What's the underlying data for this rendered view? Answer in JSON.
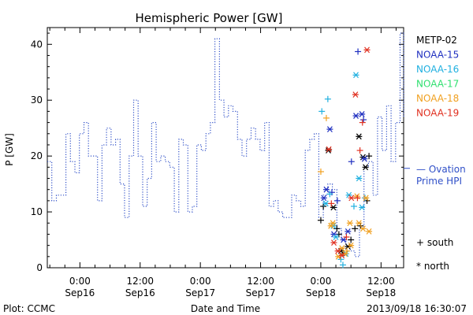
{
  "chart_data": {
    "type": "line",
    "title": "Hemispheric Power [GW]",
    "ylabel": "P [GW]",
    "xlabel": "Date and Time",
    "ylim": [
      0,
      43
    ],
    "yticks": [
      0,
      10,
      20,
      30,
      40
    ],
    "x_ticks": [
      {
        "t": 24,
        "time": "0:00",
        "date": "Sep16"
      },
      {
        "t": 36,
        "time": "12:00",
        "date": "Sep16"
      },
      {
        "t": 48,
        "time": "0:00",
        "date": "Sep17"
      },
      {
        "t": 60,
        "time": "12:00",
        "date": "Sep17"
      },
      {
        "t": 72,
        "time": "0:00",
        "date": "Sep18"
      },
      {
        "t": 84,
        "time": "12:00",
        "date": "Sep18"
      }
    ],
    "xlim": [
      17.5,
      88.5
    ],
    "ovation": {
      "name": "Ovation Prime HPI",
      "label_line1": "— Ovation",
      "label_line2": "Prime HPI",
      "color": "#3050c8",
      "steps": [
        [
          17.5,
          19
        ],
        [
          18.4,
          12
        ],
        [
          19.3,
          13
        ],
        [
          21.2,
          24
        ],
        [
          22.1,
          19
        ],
        [
          23.0,
          17
        ],
        [
          23.9,
          24
        ],
        [
          24.8,
          26
        ],
        [
          25.7,
          20
        ],
        [
          27.5,
          12
        ],
        [
          28.4,
          22
        ],
        [
          29.3,
          25
        ],
        [
          30.2,
          22
        ],
        [
          31.1,
          23
        ],
        [
          32.0,
          15
        ],
        [
          32.9,
          9
        ],
        [
          33.8,
          20
        ],
        [
          34.7,
          30
        ],
        [
          35.6,
          20
        ],
        [
          36.5,
          11
        ],
        [
          37.4,
          16
        ],
        [
          38.3,
          26
        ],
        [
          39.2,
          19
        ],
        [
          40.1,
          20
        ],
        [
          41.0,
          19
        ],
        [
          41.9,
          18
        ],
        [
          42.8,
          10
        ],
        [
          43.7,
          23
        ],
        [
          44.6,
          22
        ],
        [
          45.5,
          10
        ],
        [
          46.4,
          11
        ],
        [
          47.3,
          22
        ],
        [
          48.2,
          21
        ],
        [
          49.1,
          24
        ],
        [
          50.0,
          26
        ],
        [
          50.9,
          41
        ],
        [
          51.8,
          30
        ],
        [
          52.7,
          27
        ],
        [
          53.6,
          29
        ],
        [
          54.5,
          28
        ],
        [
          55.4,
          23
        ],
        [
          56.3,
          20
        ],
        [
          57.2,
          23
        ],
        [
          58.1,
          25
        ],
        [
          59.0,
          23
        ],
        [
          59.9,
          21
        ],
        [
          60.8,
          26
        ],
        [
          61.7,
          11
        ],
        [
          62.6,
          12
        ],
        [
          63.5,
          10
        ],
        [
          64.4,
          9
        ],
        [
          66.2,
          13
        ],
        [
          67.1,
          12
        ],
        [
          68.0,
          11
        ],
        [
          68.9,
          21
        ],
        [
          69.8,
          23
        ],
        [
          70.7,
          24
        ],
        [
          71.6,
          9
        ],
        [
          72.5,
          13
        ],
        [
          73.4,
          15
        ],
        [
          74.3,
          14
        ],
        [
          75.2,
          7
        ],
        [
          76.1,
          5
        ],
        [
          77.0,
          4
        ],
        [
          77.9,
          3
        ],
        [
          78.8,
          2
        ],
        [
          79.7,
          7
        ],
        [
          80.6,
          18
        ],
        [
          81.5,
          19
        ],
        [
          82.4,
          13
        ],
        [
          83.3,
          27
        ],
        [
          84.2,
          21
        ],
        [
          85.1,
          29
        ],
        [
          86.0,
          19
        ],
        [
          86.9,
          26
        ],
        [
          87.8,
          42
        ],
        [
          88.5,
          27
        ]
      ]
    },
    "series": [
      {
        "name": "METP-02",
        "color": "#000000",
        "points": [
          {
            "t": 72.0,
            "v": 8.5,
            "h": "s"
          },
          {
            "t": 72.5,
            "v": 11,
            "h": "s"
          },
          {
            "t": 73.5,
            "v": 21,
            "h": "n"
          },
          {
            "t": 74.5,
            "v": 10.8,
            "h": "n"
          },
          {
            "t": 75.2,
            "v": 7,
            "h": "s"
          },
          {
            "t": 75.6,
            "v": 6,
            "h": "s"
          },
          {
            "t": 76.0,
            "v": 3,
            "h": "n"
          },
          {
            "t": 76.4,
            "v": 2.5,
            "h": "s"
          },
          {
            "t": 77.4,
            "v": 3.8,
            "h": "n"
          },
          {
            "t": 78.0,
            "v": 5,
            "h": "s"
          },
          {
            "t": 78.8,
            "v": 7,
            "h": "s"
          },
          {
            "t": 79.6,
            "v": 23.5,
            "h": "n"
          },
          {
            "t": 79.9,
            "v": 7.5,
            "h": "s"
          },
          {
            "t": 80.4,
            "v": 19.8,
            "h": "n"
          },
          {
            "t": 80.9,
            "v": 18,
            "h": "n"
          },
          {
            "t": 81.2,
            "v": 12,
            "h": "s"
          },
          {
            "t": 81.6,
            "v": 20,
            "h": "s"
          }
        ]
      },
      {
        "name": "NOAA-15",
        "color": "#2030c0",
        "points": [
          {
            "t": 72.6,
            "v": 12.5,
            "h": "n"
          },
          {
            "t": 73.1,
            "v": 14,
            "h": "n"
          },
          {
            "t": 73.8,
            "v": 24.8,
            "h": "n"
          },
          {
            "t": 74.2,
            "v": 13.5,
            "h": "s"
          },
          {
            "t": 74.6,
            "v": 6,
            "h": "n"
          },
          {
            "t": 75.3,
            "v": 12,
            "h": "s"
          },
          {
            "t": 76.5,
            "v": 5,
            "h": "n"
          },
          {
            "t": 77.4,
            "v": 6.5,
            "h": "n"
          },
          {
            "t": 78.1,
            "v": 19,
            "h": "s"
          },
          {
            "t": 79.0,
            "v": 27.2,
            "h": "n"
          },
          {
            "t": 79.4,
            "v": 38.7,
            "h": "s"
          },
          {
            "t": 80.2,
            "v": 27.5,
            "h": "n"
          },
          {
            "t": 80.7,
            "v": 19.5,
            "h": "n"
          },
          {
            "t": 80.5,
            "v": 26.5,
            "h": "s"
          }
        ]
      },
      {
        "name": "NOAA-16",
        "color": "#20b0e0",
        "points": [
          {
            "t": 72.2,
            "v": 28,
            "h": "s"
          },
          {
            "t": 73.0,
            "v": 11.5,
            "h": "n"
          },
          {
            "t": 73.4,
            "v": 30.2,
            "h": "s"
          },
          {
            "t": 73.8,
            "v": 13.2,
            "h": "s"
          },
          {
            "t": 74.5,
            "v": 7.5,
            "h": "n"
          },
          {
            "t": 75.0,
            "v": 5.5,
            "h": "n"
          },
          {
            "t": 76.0,
            "v": 1.5,
            "h": "s"
          },
          {
            "t": 76.4,
            "v": 0.5,
            "h": "s"
          },
          {
            "t": 77.0,
            "v": 2.5,
            "h": "n"
          },
          {
            "t": 77.6,
            "v": 13,
            "h": "n"
          },
          {
            "t": 78.6,
            "v": 11,
            "h": "s"
          },
          {
            "t": 79.0,
            "v": 34.5,
            "h": "n"
          },
          {
            "t": 79.6,
            "v": 16,
            "h": "n"
          },
          {
            "t": 80.2,
            "v": 10.8,
            "h": "n"
          },
          {
            "t": 80.8,
            "v": 12.5,
            "h": "s"
          }
        ]
      },
      {
        "name": "NOAA-17",
        "color": "#30e070",
        "points": []
      },
      {
        "name": "NOAA-18",
        "color": "#f0a020",
        "points": [
          {
            "t": 72.0,
            "v": 17.2,
            "h": "s"
          },
          {
            "t": 73.1,
            "v": 26.8,
            "h": "s"
          },
          {
            "t": 74.0,
            "v": 7.5,
            "h": "n"
          },
          {
            "t": 74.4,
            "v": 8,
            "h": "n"
          },
          {
            "t": 75.5,
            "v": 2,
            "h": "n"
          },
          {
            "t": 76.2,
            "v": 3.5,
            "h": "n"
          },
          {
            "t": 76.8,
            "v": 2.5,
            "h": "n"
          },
          {
            "t": 77.2,
            "v": 3,
            "h": "s"
          },
          {
            "t": 77.8,
            "v": 8,
            "h": "n"
          },
          {
            "t": 78.0,
            "v": 4,
            "h": "n"
          },
          {
            "t": 79.2,
            "v": 12.8,
            "h": "n"
          },
          {
            "t": 79.6,
            "v": 8,
            "h": "n"
          },
          {
            "t": 80.4,
            "v": 7,
            "h": "n"
          },
          {
            "t": 81.0,
            "v": 12.5,
            "h": "n"
          },
          {
            "t": 81.6,
            "v": 6.5,
            "h": "n"
          }
        ]
      },
      {
        "name": "NOAA-19",
        "color": "#e03020",
        "points": [
          {
            "t": 73.6,
            "v": 21.2,
            "h": "n"
          },
          {
            "t": 74.1,
            "v": 11.5,
            "h": "s"
          },
          {
            "t": 74.6,
            "v": 4.5,
            "h": "n"
          },
          {
            "t": 75.4,
            "v": 3,
            "h": "n"
          },
          {
            "t": 76.2,
            "v": 2.2,
            "h": "n"
          },
          {
            "t": 77.1,
            "v": 5.5,
            "h": "s"
          },
          {
            "t": 78.1,
            "v": 12.5,
            "h": "n"
          },
          {
            "t": 78.9,
            "v": 31,
            "h": "n"
          },
          {
            "t": 79.3,
            "v": 12.5,
            "h": "s"
          },
          {
            "t": 79.8,
            "v": 21,
            "h": "s"
          },
          {
            "t": 80.3,
            "v": 26,
            "h": "s"
          },
          {
            "t": 81.2,
            "v": 39,
            "h": "n"
          }
        ]
      }
    ],
    "hemisphere_legend": [
      {
        "glyph": "+",
        "label": "south"
      },
      {
        "glyph": "*",
        "label": "north"
      }
    ]
  },
  "footer": {
    "left": "Plot: CCMC",
    "right": "2013/09/18 16:30:07"
  }
}
